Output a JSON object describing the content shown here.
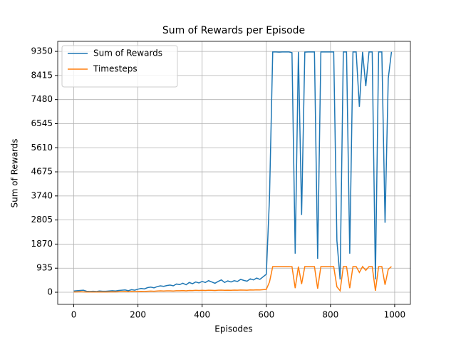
{
  "chart_data": {
    "type": "line",
    "title": "Sum of Rewards per Episode",
    "xlabel": "Episodes",
    "ylabel": "Sum of Rewards",
    "x": [
      0,
      10,
      20,
      30,
      40,
      50,
      60,
      70,
      80,
      90,
      100,
      110,
      120,
      130,
      140,
      150,
      160,
      170,
      180,
      190,
      200,
      210,
      220,
      230,
      240,
      250,
      260,
      270,
      280,
      290,
      300,
      310,
      320,
      330,
      340,
      350,
      360,
      370,
      380,
      390,
      400,
      410,
      420,
      430,
      440,
      450,
      460,
      470,
      480,
      490,
      500,
      510,
      520,
      530,
      540,
      550,
      560,
      570,
      580,
      590,
      600,
      610,
      620,
      630,
      640,
      650,
      660,
      670,
      680,
      690,
      700,
      710,
      720,
      730,
      740,
      750,
      760,
      770,
      780,
      790,
      800,
      810,
      820,
      830,
      840,
      850,
      860,
      870,
      880,
      890,
      900,
      910,
      920,
      930,
      940,
      950,
      960,
      970,
      980,
      990
    ],
    "series": [
      {
        "name": "Sum of Rewards",
        "color": "#1f77b4",
        "values": [
          50,
          60,
          70,
          80,
          40,
          30,
          40,
          30,
          50,
          40,
          40,
          50,
          60,
          50,
          70,
          80,
          90,
          60,
          100,
          80,
          120,
          150,
          130,
          180,
          200,
          170,
          220,
          250,
          230,
          260,
          280,
          250,
          320,
          300,
          350,
          290,
          380,
          330,
          400,
          360,
          420,
          380,
          450,
          400,
          350,
          420,
          480,
          380,
          440,
          400,
          450,
          420,
          500,
          460,
          430,
          520,
          480,
          550,
          500,
          600,
          700,
          3700,
          9330,
          9330,
          9320,
          9330,
          9330,
          9330,
          9300,
          1500,
          9330,
          3000,
          9320,
          9330,
          9330,
          9330,
          1300,
          9330,
          9330,
          9330,
          9330,
          9330,
          2000,
          500,
          9330,
          9330,
          1500,
          9330,
          9330,
          7200,
          9330,
          8000,
          9330,
          9330,
          500,
          9330,
          9330,
          2700,
          8300,
          9330
        ]
      },
      {
        "name": "Timesteps",
        "color": "#ff7f0e",
        "values": [
          10,
          15,
          20,
          15,
          10,
          10,
          12,
          10,
          15,
          12,
          12,
          15,
          18,
          15,
          20,
          22,
          25,
          20,
          28,
          25,
          30,
          35,
          30,
          40,
          45,
          40,
          50,
          55,
          50,
          55,
          55,
          50,
          60,
          60,
          65,
          55,
          70,
          65,
          75,
          70,
          75,
          70,
          80,
          75,
          70,
          80,
          85,
          75,
          80,
          78,
          82,
          80,
          88,
          85,
          80,
          90,
          88,
          95,
          90,
          100,
          110,
          400,
          998,
          998,
          997,
          998,
          998,
          998,
          995,
          160,
          998,
          320,
          997,
          998,
          998,
          998,
          140,
          998,
          998,
          998,
          998,
          998,
          210,
          60,
          998,
          998,
          160,
          998,
          998,
          770,
          998,
          850,
          998,
          998,
          60,
          998,
          998,
          290,
          890,
          998
        ]
      }
    ],
    "xlim": [
      -50,
      1049
    ],
    "xticks": [
      0,
      200,
      400,
      600,
      800,
      1000
    ],
    "ylim": [
      -470,
      9740
    ],
    "yticks": [
      0,
      935,
      1870,
      2805,
      3740,
      4675,
      5610,
      6545,
      7480,
      8415,
      9350
    ],
    "grid": true,
    "legend": "upper left"
  }
}
